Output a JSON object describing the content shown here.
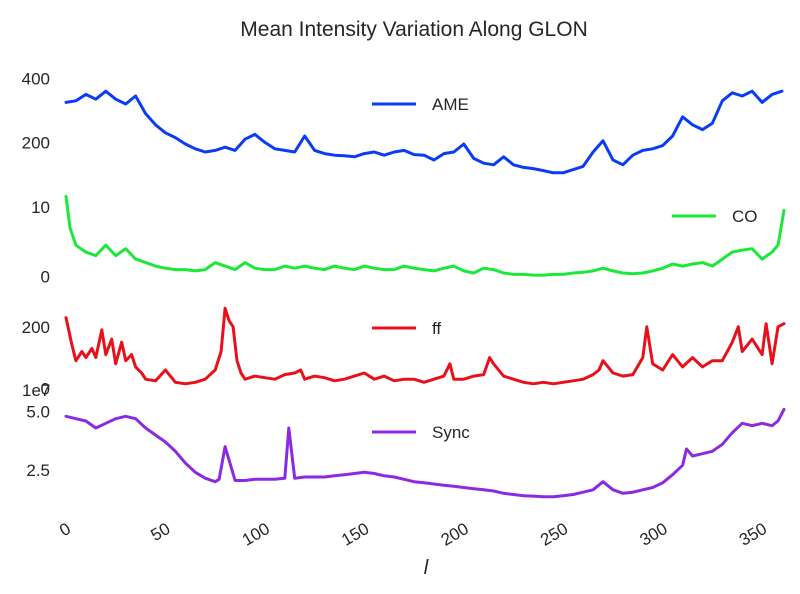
{
  "chart_data": {
    "type": "line",
    "title": "Mean Intensity Variation Along GLON",
    "xlabel": "l",
    "xlim": [
      0,
      361
    ],
    "xticks": [
      0,
      50,
      100,
      150,
      200,
      250,
      300,
      350
    ],
    "xtick_labels": [
      "0",
      "50",
      "100",
      "150",
      "200",
      "250",
      "300",
      "350"
    ],
    "grid": false,
    "panels": [
      {
        "name": "AME",
        "color": "#0a3cf5",
        "ylim": [
          95,
          420
        ],
        "yticks": [
          200,
          400
        ],
        "ytick_labels": [
          "200",
          "400"
        ],
        "legend_position": "upper-center",
        "x": [
          0,
          5,
          10,
          15,
          20,
          25,
          30,
          35,
          40,
          45,
          50,
          55,
          60,
          65,
          70,
          75,
          80,
          85,
          90,
          95,
          100,
          105,
          110,
          115,
          120,
          125,
          130,
          135,
          140,
          145,
          150,
          155,
          160,
          165,
          170,
          175,
          180,
          185,
          190,
          195,
          200,
          205,
          210,
          215,
          220,
          225,
          230,
          235,
          240,
          245,
          250,
          255,
          260,
          265,
          270,
          275,
          280,
          285,
          290,
          295,
          300,
          305,
          310,
          315,
          320,
          325,
          330,
          335,
          340,
          345,
          350,
          355,
          360
        ],
        "values": [
          325,
          330,
          350,
          335,
          360,
          335,
          320,
          345,
          290,
          255,
          230,
          215,
          195,
          180,
          170,
          175,
          185,
          175,
          210,
          225,
          200,
          180,
          175,
          170,
          220,
          175,
          165,
          160,
          158,
          155,
          165,
          170,
          160,
          170,
          175,
          162,
          160,
          145,
          165,
          170,
          195,
          150,
          135,
          130,
          155,
          130,
          122,
          118,
          112,
          105,
          105,
          115,
          125,
          170,
          205,
          145,
          130,
          160,
          175,
          180,
          190,
          220,
          280,
          255,
          240,
          260,
          330,
          355,
          345,
          360,
          325,
          350,
          360
        ]
      },
      {
        "name": "CO",
        "color": "#1be838",
        "ylim": [
          -0.5,
          13
        ],
        "yticks": [
          0,
          10
        ],
        "ytick_labels": [
          "0",
          "10"
        ],
        "legend_position": "right",
        "x": [
          0,
          2,
          5,
          10,
          15,
          20,
          25,
          30,
          35,
          40,
          45,
          50,
          55,
          60,
          65,
          70,
          75,
          80,
          85,
          90,
          95,
          100,
          105,
          110,
          115,
          120,
          125,
          130,
          135,
          140,
          145,
          150,
          155,
          160,
          165,
          170,
          175,
          180,
          185,
          190,
          195,
          200,
          205,
          210,
          215,
          220,
          225,
          230,
          235,
          240,
          245,
          250,
          255,
          260,
          265,
          270,
          275,
          280,
          285,
          290,
          295,
          300,
          305,
          310,
          315,
          320,
          325,
          330,
          335,
          340,
          345,
          350,
          355,
          358,
          361
        ],
        "values": [
          11.5,
          7,
          4.5,
          3.5,
          3,
          4.5,
          3,
          4,
          2.5,
          2,
          1.5,
          1.2,
          1,
          1,
          0.8,
          1,
          2,
          1.5,
          1,
          2,
          1.2,
          1,
          1,
          1.5,
          1.2,
          1.5,
          1.2,
          1,
          1.5,
          1.2,
          1,
          1.5,
          1.2,
          1,
          1,
          1.5,
          1.2,
          1,
          0.8,
          1.2,
          1.5,
          0.8,
          0.5,
          1.2,
          1,
          0.5,
          0.3,
          0.3,
          0.2,
          0.2,
          0.3,
          0.3,
          0.5,
          0.6,
          0.8,
          1.2,
          0.8,
          0.5,
          0.4,
          0.5,
          0.8,
          1.2,
          1.8,
          1.5,
          1.8,
          2,
          1.5,
          2.5,
          3.5,
          3.8,
          4,
          2.5,
          3.5,
          4.5,
          9.5
        ]
      },
      {
        "name": "ff",
        "color": "#e8101a",
        "ylim": [
          -5,
          300
        ],
        "yticks": [
          0,
          200
        ],
        "ytick_labels": [
          "0",
          "200"
        ],
        "legend_position": "upper-center",
        "x": [
          0,
          3,
          5,
          8,
          10,
          13,
          15,
          18,
          20,
          23,
          25,
          28,
          30,
          33,
          35,
          38,
          40,
          45,
          50,
          55,
          60,
          65,
          70,
          75,
          78,
          80,
          82,
          84,
          86,
          88,
          90,
          95,
          100,
          105,
          110,
          115,
          118,
          120,
          125,
          130,
          135,
          140,
          145,
          150,
          155,
          160,
          165,
          170,
          175,
          180,
          185,
          190,
          193,
          195,
          200,
          205,
          210,
          213,
          215,
          220,
          225,
          230,
          235,
          240,
          245,
          250,
          255,
          260,
          265,
          268,
          270,
          275,
          280,
          285,
          290,
          292,
          295,
          300,
          305,
          310,
          315,
          320,
          325,
          330,
          335,
          338,
          340,
          345,
          350,
          352,
          355,
          358,
          361
        ],
        "values": [
          230,
          140,
          90,
          120,
          100,
          130,
          100,
          190,
          110,
          160,
          80,
          150,
          90,
          110,
          70,
          50,
          30,
          25,
          60,
          20,
          15,
          20,
          30,
          60,
          120,
          260,
          220,
          200,
          90,
          50,
          30,
          40,
          35,
          30,
          45,
          50,
          60,
          30,
          40,
          35,
          25,
          30,
          40,
          50,
          30,
          40,
          25,
          30,
          30,
          20,
          30,
          40,
          80,
          30,
          30,
          40,
          45,
          100,
          80,
          40,
          30,
          20,
          15,
          20,
          15,
          20,
          25,
          30,
          45,
          60,
          90,
          50,
          40,
          45,
          100,
          200,
          80,
          60,
          110,
          70,
          100,
          70,
          90,
          90,
          150,
          200,
          120,
          160,
          110,
          210,
          80,
          200,
          210
        ]
      },
      {
        "name": "Sync",
        "color": "#8a2be2",
        "ylim": [
          10000000,
          55000000
        ],
        "yticks": [
          25000000,
          50000000
        ],
        "ytick_labels": [
          "2.5",
          "5.0"
        ],
        "scale_label": "1e7",
        "legend_position": "upper-center",
        "x": [
          0,
          5,
          10,
          15,
          20,
          25,
          30,
          35,
          40,
          45,
          50,
          55,
          60,
          65,
          70,
          75,
          77,
          80,
          85,
          90,
          95,
          100,
          105,
          110,
          112,
          115,
          120,
          125,
          130,
          135,
          140,
          145,
          150,
          155,
          160,
          165,
          170,
          175,
          180,
          185,
          190,
          195,
          200,
          205,
          210,
          215,
          220,
          225,
          230,
          235,
          240,
          245,
          250,
          255,
          260,
          265,
          270,
          275,
          280,
          285,
          290,
          295,
          300,
          305,
          310,
          312,
          315,
          320,
          325,
          330,
          335,
          340,
          345,
          350,
          355,
          358,
          361
        ],
        "values": [
          48000000,
          47000000,
          46000000,
          43000000,
          45000000,
          47000000,
          48000000,
          47000000,
          43000000,
          40000000,
          37000000,
          33000000,
          28000000,
          24000000,
          21500000,
          20000000,
          21000000,
          35000000,
          20500000,
          20500000,
          21000000,
          21000000,
          21000000,
          21500000,
          43000000,
          21500000,
          22000000,
          22000000,
          22000000,
          22500000,
          23000000,
          23500000,
          24000000,
          23500000,
          22500000,
          22000000,
          21000000,
          20000000,
          19500000,
          19000000,
          18500000,
          18000000,
          17500000,
          17000000,
          16500000,
          16000000,
          15000000,
          14500000,
          14000000,
          13800000,
          13500000,
          13500000,
          14000000,
          14500000,
          15500000,
          16500000,
          20000000,
          16500000,
          15000000,
          15500000,
          16500000,
          17500000,
          19500000,
          23000000,
          27000000,
          34000000,
          31000000,
          32000000,
          33000000,
          36000000,
          41000000,
          45000000,
          44000000,
          45000000,
          44000000,
          46000000,
          51000000
        ]
      }
    ]
  }
}
